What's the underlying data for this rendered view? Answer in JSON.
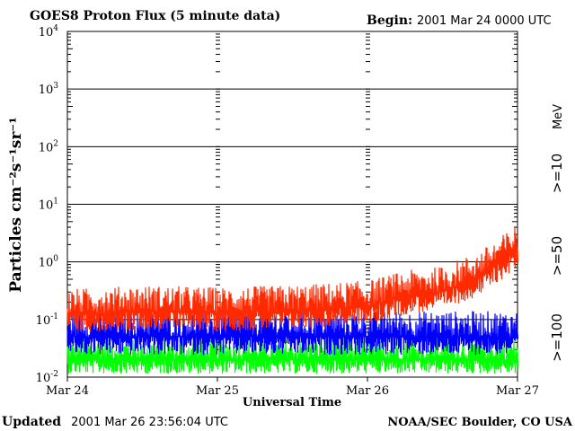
{
  "chart_data": {
    "type": "line",
    "title": "GOES8 Proton Flux (5 minute data)",
    "begin_label": "Begin:",
    "begin_value": "2001 Mar 24 0000 UTC",
    "xlabel": "Universal Time",
    "ylabel": "Particles cm⁻²s⁻¹sr⁻¹",
    "units_label": "MeV",
    "y_scale": "log",
    "ylim": [
      0.01,
      10000
    ],
    "yticks": [
      {
        "base": "10",
        "exp": "-2"
      },
      {
        "base": "10",
        "exp": "-1"
      },
      {
        "base": "10",
        "exp": "0"
      },
      {
        "base": "10",
        "exp": "1"
      },
      {
        "base": "10",
        "exp": "2"
      },
      {
        "base": "10",
        "exp": "3"
      },
      {
        "base": "10",
        "exp": "4"
      }
    ],
    "xlim": [
      "2001-03-24",
      "2001-03-27"
    ],
    "xticks": [
      "Mar 24",
      "Mar 25",
      "Mar 26",
      "Mar 27"
    ],
    "grid": true,
    "series": [
      {
        "name": ">=10",
        "color": "#ff2a00",
        "x": [
          "2001-03-24 00:00",
          "2001-03-24 12:00",
          "2001-03-25 00:00",
          "2001-03-25 12:00",
          "2001-03-26 00:00",
          "2001-03-26 06:00",
          "2001-03-26 12:00",
          "2001-03-26 18:00",
          "2001-03-27 00:00"
        ],
        "values": [
          0.12,
          0.14,
          0.13,
          0.14,
          0.17,
          0.25,
          0.3,
          0.55,
          1.6
        ]
      },
      {
        "name": ">=50",
        "color": "#0000ff",
        "x": [
          "2001-03-24 00:00",
          "2001-03-25 00:00",
          "2001-03-26 00:00",
          "2001-03-27 00:00"
        ],
        "values": [
          0.05,
          0.05,
          0.05,
          0.05
        ]
      },
      {
        "name": ">=100",
        "color": "#00ff00",
        "x": [
          "2001-03-24 00:00",
          "2001-03-25 00:00",
          "2001-03-26 00:00",
          "2001-03-27 00:00"
        ],
        "values": [
          0.02,
          0.02,
          0.02,
          0.02
        ]
      }
    ]
  },
  "footer": {
    "updated_label": "Updated",
    "updated_value": "2001 Mar 26 23:56:04 UTC",
    "credit": "NOAA/SEC Boulder, CO USA"
  }
}
